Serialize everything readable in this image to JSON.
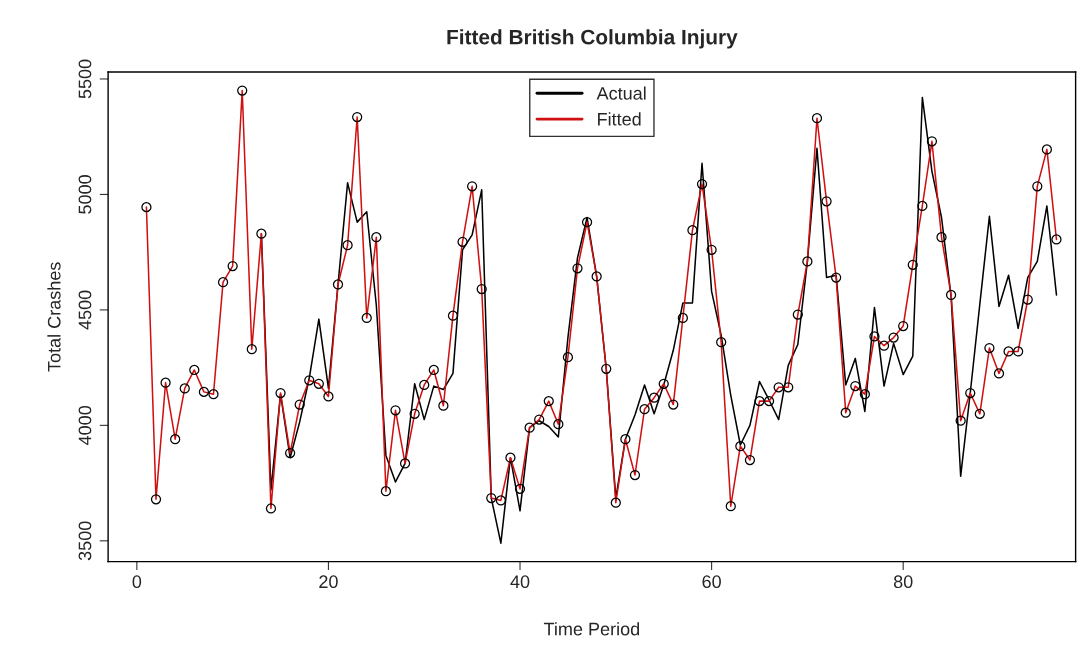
{
  "chart_data": {
    "type": "line",
    "title": "Fitted British Columbia Injury",
    "xlabel": "Time Period",
    "ylabel": "Total Crashes",
    "x": [
      1,
      2,
      3,
      4,
      5,
      6,
      7,
      8,
      9,
      10,
      11,
      12,
      13,
      14,
      15,
      16,
      17,
      18,
      19,
      20,
      21,
      22,
      23,
      24,
      25,
      26,
      27,
      28,
      29,
      30,
      31,
      32,
      33,
      34,
      35,
      36,
      37,
      38,
      39,
      40,
      41,
      42,
      43,
      44,
      45,
      46,
      47,
      48,
      49,
      50,
      51,
      52,
      53,
      54,
      55,
      56,
      57,
      58,
      59,
      60,
      61,
      62,
      63,
      64,
      65,
      66,
      67,
      68,
      69,
      70,
      71,
      72,
      73,
      74,
      75,
      76,
      77,
      78,
      79,
      80,
      81,
      82,
      83,
      84,
      85,
      86,
      87,
      88,
      89,
      90,
      91,
      92,
      93,
      94,
      95,
      96
    ],
    "series": [
      {
        "name": "Actual",
        "color": "#000000",
        "marker": "none",
        "values": [
          null,
          null,
          null,
          null,
          null,
          null,
          null,
          null,
          null,
          null,
          null,
          null,
          4830,
          3720,
          4135,
          3860,
          4015,
          4205,
          4460,
          4160,
          4610,
          5050,
          4880,
          4925,
          4520,
          3870,
          3755,
          3835,
          4180,
          4025,
          4170,
          4155,
          4225,
          4760,
          4825,
          5020,
          3685,
          3490,
          3860,
          3630,
          3990,
          4020,
          3995,
          3950,
          4380,
          4725,
          4900,
          4645,
          4245,
          3685,
          3940,
          4045,
          4175,
          4050,
          4175,
          4325,
          4530,
          4530,
          5135,
          4580,
          4390,
          4130,
          3915,
          4000,
          4190,
          4110,
          4025,
          4260,
          4350,
          4710,
          5200,
          4640,
          4650,
          4175,
          4290,
          4060,
          4510,
          4170,
          4355,
          4220,
          4300,
          5420,
          5100,
          4900,
          4560,
          3780,
          4140,
          4525,
          4905,
          4515,
          4650,
          4420,
          4640,
          4710,
          4950,
          4565
        ]
      },
      {
        "name": "Fitted",
        "color": "#d01010",
        "marker": "circle",
        "values": [
          4945,
          3680,
          4185,
          3940,
          4160,
          4240,
          4145,
          4135,
          4620,
          4690,
          5450,
          4330,
          4830,
          3640,
          4140,
          3880,
          4090,
          4195,
          4180,
          4125,
          4610,
          4780,
          5335,
          4465,
          4815,
          3715,
          4065,
          3835,
          4050,
          4175,
          4240,
          4085,
          4475,
          4795,
          5035,
          4590,
          3685,
          3675,
          3860,
          3725,
          3990,
          4025,
          4105,
          4005,
          4295,
          4680,
          4880,
          4645,
          4245,
          3665,
          3940,
          3785,
          4070,
          4120,
          4180,
          4090,
          4465,
          4845,
          5045,
          4760,
          4360,
          3650,
          3910,
          3850,
          4105,
          4105,
          4165,
          4165,
          4480,
          4710,
          5330,
          4970,
          4640,
          4055,
          4170,
          4135,
          4385,
          4345,
          4380,
          4430,
          4695,
          4950,
          5230,
          4815,
          4565,
          4020,
          4140,
          4050,
          4335,
          4225,
          4320,
          4320,
          4545,
          5035,
          5195,
          4805
        ]
      }
    ],
    "xlim": [
      -3,
      98
    ],
    "ylim": [
      3410,
      5530
    ],
    "xticks": [
      0,
      20,
      40,
      60,
      80
    ],
    "yticks": [
      3500,
      4000,
      4500,
      5000,
      5500
    ],
    "grid": false,
    "legend": "top",
    "line_style": "solid"
  }
}
